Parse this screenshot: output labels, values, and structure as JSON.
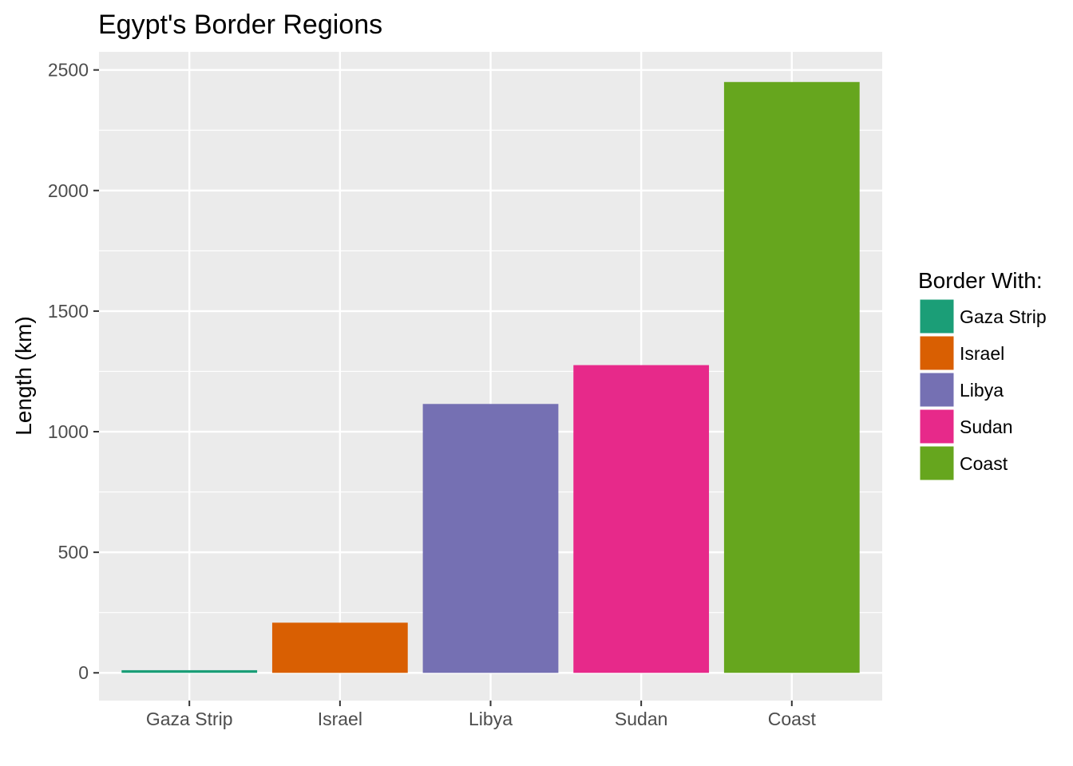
{
  "chart_data": {
    "type": "bar",
    "title": "Egypt's Border Regions",
    "xlabel": "",
    "ylabel": "Length (km)",
    "categories": [
      "Gaza Strip",
      "Israel",
      "Libya",
      "Sudan",
      "Coast"
    ],
    "values": [
      11,
      208,
      1115,
      1276,
      2450
    ],
    "colors": [
      "#1b9e77",
      "#d95f02",
      "#7570b3",
      "#e7298a",
      "#66a61e"
    ],
    "ylim": [
      -115,
      2575
    ],
    "yticks": [
      0,
      500,
      1000,
      1500,
      2000,
      2500
    ],
    "grid": true,
    "legend": {
      "title": "Border With:",
      "position": "right",
      "items": [
        "Gaza Strip",
        "Israel",
        "Libya",
        "Sudan",
        "Coast"
      ]
    }
  }
}
